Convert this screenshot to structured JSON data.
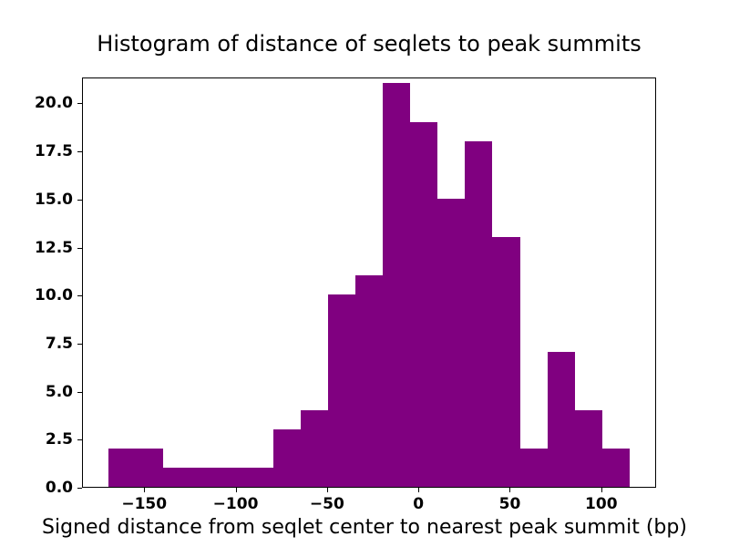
{
  "chart_data": {
    "type": "bar",
    "subtype": "histogram",
    "title": "Histogram of distance of seqlets to peak summits",
    "xlabel": "Signed distance from seqlet center to nearest peak summit (bp)",
    "ylabel": "",
    "bar_color": "#800080",
    "background_color": "#ffffff",
    "grid": false,
    "legend_position": "none",
    "bin_edges": [
      -170,
      -155,
      -140,
      -125,
      -110,
      -95,
      -80,
      -65,
      -50,
      -35,
      -20,
      -5,
      10,
      25,
      40,
      55,
      70,
      85,
      100,
      115
    ],
    "counts": [
      2,
      2,
      1,
      1,
      1,
      1,
      3,
      4,
      10,
      11,
      21,
      19,
      15,
      18,
      13,
      2,
      7,
      4,
      2
    ],
    "xlim": [
      -184,
      130
    ],
    "ylim": [
      0,
      21.35
    ],
    "xticks": [
      -150,
      -100,
      -50,
      0,
      50,
      100
    ],
    "xtick_labels": [
      "−150",
      "−100",
      "−50",
      "0",
      "50",
      "100"
    ],
    "yticks": [
      0,
      2.5,
      5,
      7.5,
      10,
      12.5,
      15,
      17.5,
      20
    ],
    "ytick_labels": [
      "0.0",
      "2.5",
      "5.0",
      "7.5",
      "10.0",
      "12.5",
      "15.0",
      "17.5",
      "20.0"
    ]
  }
}
